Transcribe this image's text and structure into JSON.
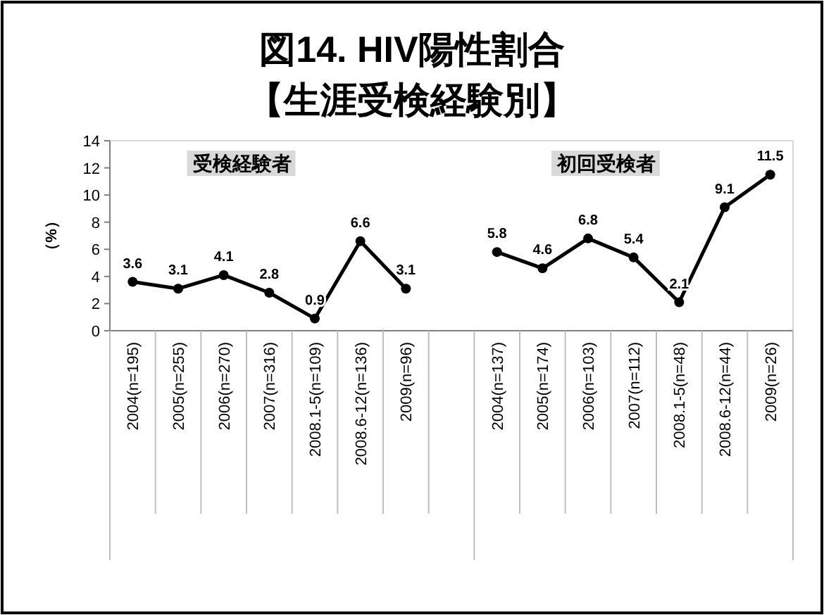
{
  "chart_data": {
    "type": "line",
    "title": "図14. HIV陽性割合",
    "subtitle": "【生涯受検経験別】",
    "ylabel": "（%）",
    "categories": [
      "2004(n=195)",
      "2005(n=255)",
      "2006(n=270)",
      "2007(n=316)",
      "2008.1-5(n=109)",
      "2008.6-12(n=136)",
      "2009(n=96)",
      null,
      "2004(n=137)",
      "2005(n=174)",
      "2006(n=103)",
      "2007(n=112)",
      "2008.1-5(n=48)",
      "2008.6-12(n=44)",
      "2009(n=26)"
    ],
    "series": [
      {
        "color": "#000000",
        "values": [
          3.6,
          3.1,
          4.1,
          2.8,
          0.9,
          6.6,
          3.1,
          null,
          null,
          null,
          null,
          null,
          null,
          null,
          null
        ]
      },
      {
        "color": "#000000",
        "values": [
          null,
          null,
          null,
          null,
          null,
          null,
          null,
          null,
          5.8,
          4.6,
          6.8,
          5.4,
          2.1,
          9.1,
          11.5
        ]
      }
    ],
    "ylim": [
      0,
      14
    ],
    "yticks": [
      0,
      2,
      4,
      6,
      8,
      10,
      12,
      14
    ],
    "annotations": [
      "受検経験者",
      "初回受検者"
    ],
    "marker": "circle",
    "data_labels": true,
    "grid": false
  }
}
